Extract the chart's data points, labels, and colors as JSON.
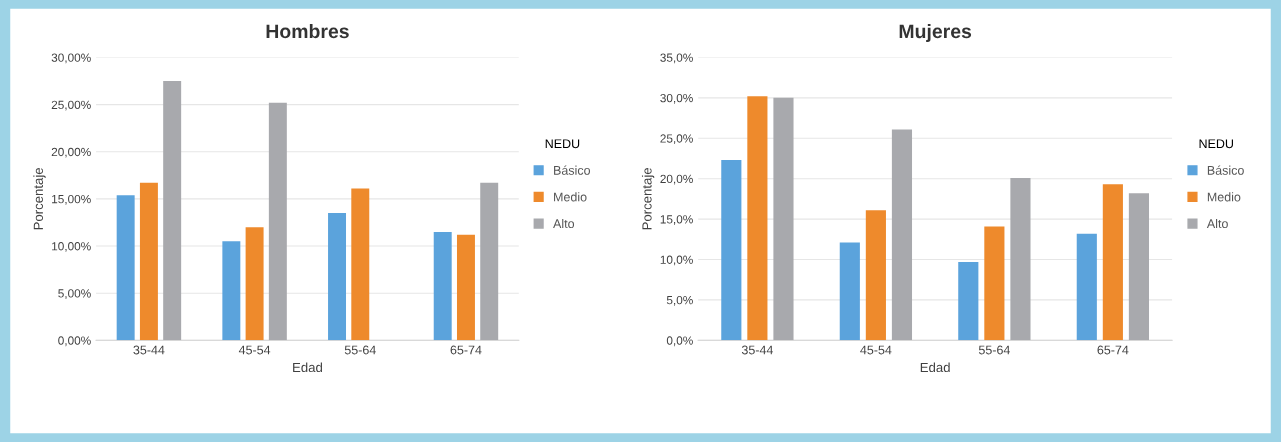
{
  "chart_data": [
    {
      "type": "bar",
      "title": "Hombres",
      "xlabel": "Edad",
      "ylabel": "Porcentaje",
      "legend_title": "NEDU",
      "legend": "right",
      "grid": "y",
      "categories": [
        "35-44",
        "45-54",
        "55-64",
        "65-74"
      ],
      "series": [
        {
          "name": "Básico",
          "color": "#5ba3dc",
          "values": [
            15.4,
            10.5,
            13.5,
            11.5
          ]
        },
        {
          "name": "Medio",
          "color": "#ee8a2c",
          "values": [
            16.7,
            12.0,
            16.1,
            11.2
          ]
        },
        {
          "name": "Alto",
          "color": "#a8a9ad",
          "values": [
            27.5,
            25.2,
            null,
            16.7
          ]
        }
      ],
      "ylim": [
        0,
        30
      ],
      "yticks": [
        {
          "value": 0,
          "label": "0,00%"
        },
        {
          "value": 5,
          "label": "5,00%"
        },
        {
          "value": 10,
          "label": "10,00%"
        },
        {
          "value": 15,
          "label": "15,00%"
        },
        {
          "value": 20,
          "label": "20,00%"
        },
        {
          "value": 25,
          "label": "25,00%"
        },
        {
          "value": 30,
          "label": "30,00%"
        }
      ]
    },
    {
      "type": "bar",
      "title": "Mujeres",
      "xlabel": "Edad",
      "ylabel": "Porcentaje",
      "legend_title": "NEDU",
      "legend": "right",
      "grid": "y",
      "categories": [
        "35-44",
        "45-54",
        "55-64",
        "65-74"
      ],
      "series": [
        {
          "name": "Básico",
          "color": "#5ba3dc",
          "values": [
            22.3,
            12.1,
            9.7,
            13.2
          ]
        },
        {
          "name": "Medio",
          "color": "#ee8a2c",
          "values": [
            30.2,
            16.1,
            14.1,
            19.3
          ]
        },
        {
          "name": "Alto",
          "color": "#a8a9ad",
          "values": [
            30.0,
            26.1,
            20.1,
            18.2
          ]
        }
      ],
      "ylim": [
        0,
        35
      ],
      "yticks": [
        {
          "value": 0,
          "label": "0,0%"
        },
        {
          "value": 5,
          "label": "5,0%"
        },
        {
          "value": 10,
          "label": "10,0%"
        },
        {
          "value": 15,
          "label": "15,0%"
        },
        {
          "value": 20,
          "label": "20,0%"
        },
        {
          "value": 25,
          "label": "25,0%"
        },
        {
          "value": 30,
          "label": "30,0%"
        },
        {
          "value": 35,
          "label": "35,0%"
        }
      ]
    }
  ]
}
